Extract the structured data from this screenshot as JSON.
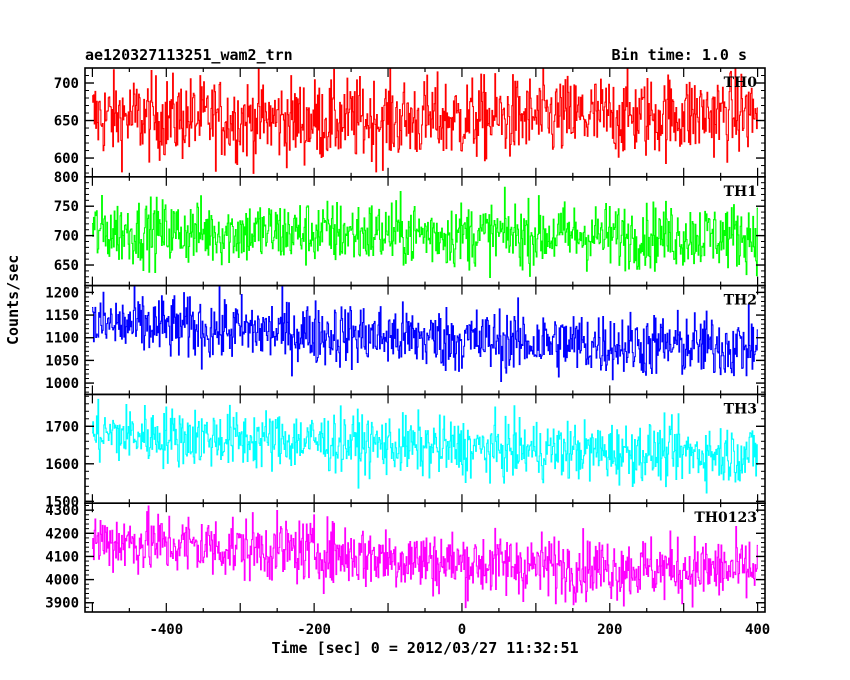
{
  "header": {
    "title": "ae120327113251_wam2_trn",
    "bin_time": "Bin time: 1.0 s"
  },
  "chart_data": {
    "type": "line",
    "title": "ae120327113251_wam2_trn",
    "xlabel": "Time [sec] 0 = 2012/03/27 11:32:51",
    "ylabel": "Counts/sec",
    "xlim": [
      -510,
      410
    ],
    "x_ticks": [
      -400,
      -200,
      0,
      200,
      400
    ],
    "x_range_data": [
      -500,
      400
    ],
    "bin_seconds": 1.0,
    "panels": [
      {
        "label": "TH0",
        "color": "#ff0000",
        "ylim": [
          575,
          720
        ],
        "y_ticks": [
          600,
          650,
          700
        ],
        "trend": [
          [
            -500,
            655
          ],
          [
            -200,
            650
          ],
          [
            0,
            652
          ],
          [
            200,
            655
          ],
          [
            400,
            660
          ]
        ],
        "noise": 28
      },
      {
        "label": "TH1",
        "color": "#00ff00",
        "ylim": [
          615,
          800
        ],
        "y_ticks": [
          650,
          700,
          750,
          800
        ],
        "trend": [
          [
            -500,
            707
          ],
          [
            -200,
            705
          ],
          [
            0,
            702
          ],
          [
            200,
            700
          ],
          [
            400,
            700
          ]
        ],
        "noise": 28
      },
      {
        "label": "TH2",
        "color": "#0000ff",
        "ylim": [
          975,
          1215
        ],
        "y_ticks": [
          1000,
          1050,
          1100,
          1150,
          1200
        ],
        "trend": [
          [
            -500,
            1130
          ],
          [
            -200,
            1110
          ],
          [
            0,
            1095
          ],
          [
            200,
            1085
          ],
          [
            400,
            1080
          ]
        ],
        "noise": 36
      },
      {
        "label": "TH3",
        "color": "#00ffff",
        "ylim": [
          1495,
          1785
        ],
        "y_ticks": [
          1500,
          1600,
          1700
        ],
        "trend": [
          [
            -500,
            1680
          ],
          [
            -200,
            1660
          ],
          [
            0,
            1640
          ],
          [
            200,
            1632
          ],
          [
            400,
            1625
          ]
        ],
        "noise": 40
      },
      {
        "label": "TH0123",
        "color": "#ff00ff",
        "ylim": [
          3860,
          4330
        ],
        "y_ticks": [
          3900,
          4000,
          4100,
          4200,
          4300
        ],
        "trend": [
          [
            -500,
            4170
          ],
          [
            -200,
            4120
          ],
          [
            0,
            4070
          ],
          [
            200,
            4050
          ],
          [
            400,
            4040
          ]
        ],
        "noise": 70
      }
    ]
  }
}
